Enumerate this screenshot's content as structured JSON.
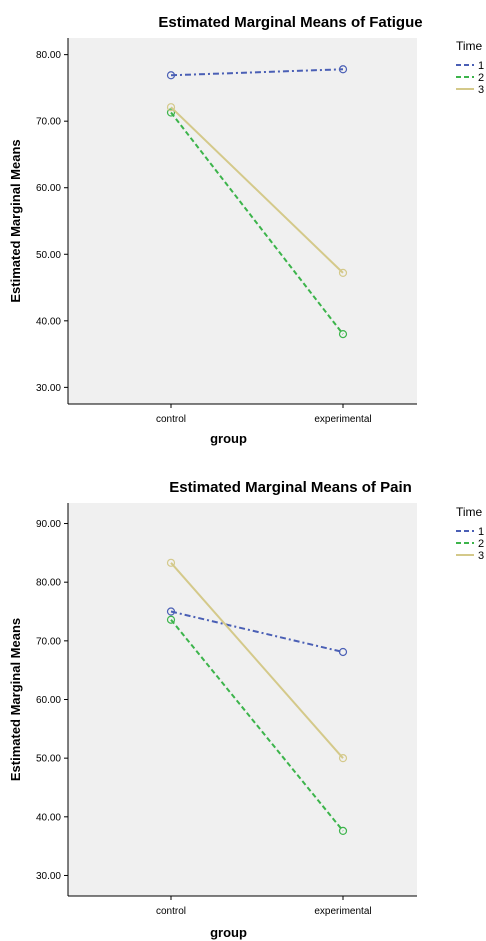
{
  "chart_data": [
    {
      "type": "line",
      "title": "Estimated Marginal Means of Fatigue",
      "xlabel": "group",
      "ylabel": "Estimated Marginal Means",
      "categories": [
        "control",
        "experimental"
      ],
      "ylim": [
        27.5,
        82.5
      ],
      "yticks": [
        "30.00",
        "40.00",
        "50.00",
        "60.00",
        "70.00",
        "80.00"
      ],
      "ytick_values": [
        30,
        40,
        50,
        60,
        70,
        80
      ],
      "legend_title": "Time",
      "legend_position": "right",
      "series": [
        {
          "name": "1",
          "values": [
            76.9,
            77.8
          ],
          "color": "#4a5fb5",
          "dash": "dashdot"
        },
        {
          "name": "2",
          "values": [
            71.3,
            38.0
          ],
          "color": "#3cb44b",
          "dash": "dash"
        },
        {
          "name": "3",
          "values": [
            72.1,
            47.2
          ],
          "color": "#d4c98a",
          "dash": "solid"
        }
      ]
    },
    {
      "type": "line",
      "title": "Estimated Marginal Means of Pain",
      "xlabel": "group",
      "ylabel": "Estimated Marginal Means",
      "categories": [
        "control",
        "experimental"
      ],
      "ylim": [
        26.5,
        93.5
      ],
      "yticks": [
        "30.00",
        "40.00",
        "50.00",
        "60.00",
        "70.00",
        "80.00",
        "90.00"
      ],
      "ytick_values": [
        30,
        40,
        50,
        60,
        70,
        80,
        90
      ],
      "legend_title": "Time",
      "legend_position": "right",
      "series": [
        {
          "name": "1",
          "values": [
            75.0,
            68.1
          ],
          "color": "#4a5fb5",
          "dash": "dashdot"
        },
        {
          "name": "2",
          "values": [
            73.6,
            37.6
          ],
          "color": "#3cb44b",
          "dash": "dash"
        },
        {
          "name": "3",
          "values": [
            83.3,
            50.0
          ],
          "color": "#d4c98a",
          "dash": "solid"
        }
      ]
    }
  ]
}
